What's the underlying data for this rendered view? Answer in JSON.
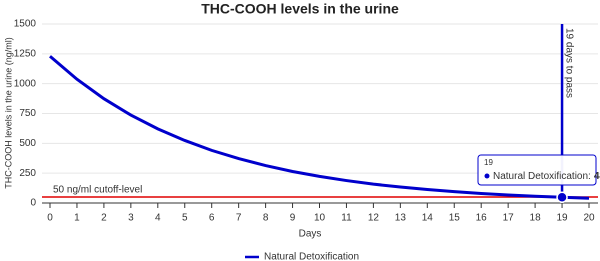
{
  "chart_data": {
    "type": "line",
    "title": "THC-COOH levels in the urine",
    "xlabel": "Days",
    "ylabel": "THC-COOH levels in the urine (ng/ml)",
    "x": [
      0,
      1,
      2,
      3,
      4,
      5,
      6,
      7,
      8,
      9,
      10,
      11,
      12,
      13,
      14,
      15,
      16,
      17,
      18,
      19,
      20
    ],
    "series": [
      {
        "name": "Natural Detoxification",
        "color": "#0000cc",
        "values": [
          1230,
          1037,
          874,
          737,
          621,
          524,
          441,
          372,
          314,
          264,
          223,
          188,
          158,
          134,
          113,
          95,
          80,
          67,
          57,
          48,
          40
        ]
      }
    ],
    "xlim": [
      0,
      20
    ],
    "xticks": [
      0,
      1,
      2,
      3,
      4,
      5,
      6,
      7,
      8,
      9,
      10,
      11,
      12,
      13,
      14,
      15,
      16,
      17,
      18,
      19,
      20
    ],
    "ylim": [
      0,
      1500
    ],
    "yticks": [
      0,
      250,
      500,
      750,
      1000,
      1250,
      1500
    ],
    "grid": true,
    "threshold": {
      "value": 50,
      "label": "50 ng/ml cutoff-level",
      "color": "#e00000"
    },
    "marker": {
      "x": 19,
      "label": "19 days to pass",
      "color": "#0000cc"
    },
    "tooltip": {
      "title": "19",
      "label": "Natural Detoxification:",
      "value": 48
    },
    "legend": "bottom"
  }
}
